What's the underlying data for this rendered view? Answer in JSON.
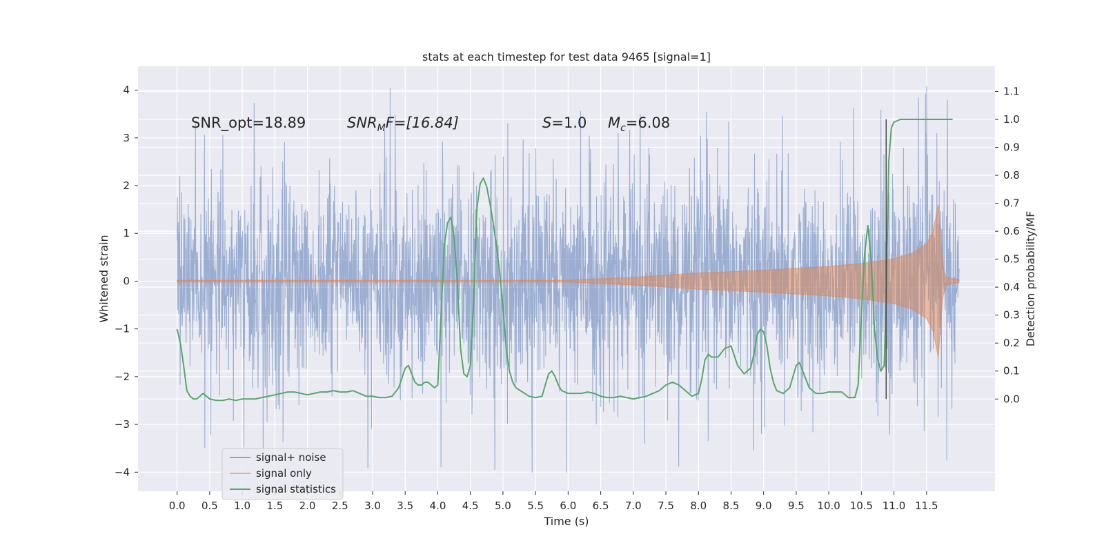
{
  "chart_data": {
    "type": "line",
    "title": "stats at each timestep for test data 9465 [signal=1]",
    "xlabel": "Time (s)",
    "ylabel": "Whitened strain",
    "ylabel_right": "Detection probability/MF",
    "xlim": [
      -0.6,
      12.55
    ],
    "ylim": [
      -4.4,
      4.5
    ],
    "ylim_right": [
      -0.33,
      1.19
    ],
    "xticks": [
      "0.0",
      "0.5",
      "1.0",
      "1.5",
      "2.0",
      "2.5",
      "3.0",
      "3.5",
      "4.0",
      "4.5",
      "5.0",
      "5.5",
      "6.0",
      "6.5",
      "7.0",
      "7.5",
      "8.0",
      "8.5",
      "9.0",
      "9.5",
      "10.0",
      "10.5",
      "11.0",
      "11.5"
    ],
    "yticks_left": [
      "4",
      "3",
      "2",
      "1",
      "0",
      "−1",
      "−2",
      "−3",
      "−4"
    ],
    "yticks_right": [
      "1.1",
      "1.0",
      "0.9",
      "0.8",
      "0.7",
      "0.6",
      "0.5",
      "0.4",
      "0.3",
      "0.2",
      "0.1",
      "0.0"
    ],
    "grid": true,
    "legend_position": "lower-left",
    "annotations": {
      "snr_opt": "SNR_opt=18.89",
      "snr_mf_main": "SNR",
      "snr_mf_sub": "M",
      "snr_mf_rest": "F=[16.84]",
      "s_main": "S",
      "s_rest": "=1.0",
      "mc_main": "M",
      "mc_sub": "c",
      "mc_rest": "=6.08"
    },
    "vertical_marker": {
      "x": 10.88,
      "y_right_range": [
        0.0,
        1.0
      ]
    },
    "series": [
      {
        "name": "signal+ noise",
        "axis": "left",
        "color": "#4c72b0",
        "x_range": [
          0.0,
          12.0
        ],
        "envelope_typical": 1.3,
        "envelope_peak": 4.1
      },
      {
        "name": "signal only",
        "axis": "left",
        "color": "#dd8452",
        "x": [
          0.0,
          6.0,
          7.0,
          8.0,
          9.0,
          10.0,
          10.5,
          11.0,
          11.3,
          11.5,
          11.6,
          11.68,
          11.75,
          11.8,
          12.0
        ],
        "amplitude": [
          0.02,
          0.02,
          0.08,
          0.17,
          0.23,
          0.31,
          0.37,
          0.47,
          0.6,
          0.78,
          1.05,
          1.6,
          0.3,
          0.08,
          0.03
        ]
      },
      {
        "name": "signal statistics",
        "axis": "right",
        "color": "#55a868",
        "x": [
          0.0,
          0.05,
          0.1,
          0.15,
          0.2,
          0.25,
          0.3,
          0.35,
          0.4,
          0.5,
          0.6,
          0.7,
          0.8,
          0.9,
          1.0,
          1.1,
          1.2,
          1.3,
          1.4,
          1.5,
          1.6,
          1.7,
          1.8,
          1.9,
          2.0,
          2.1,
          2.2,
          2.3,
          2.4,
          2.5,
          2.6,
          2.7,
          2.8,
          2.9,
          3.0,
          3.1,
          3.2,
          3.3,
          3.4,
          3.5,
          3.55,
          3.6,
          3.65,
          3.7,
          3.75,
          3.8,
          3.85,
          3.9,
          3.95,
          4.0,
          4.05,
          4.1,
          4.15,
          4.2,
          4.25,
          4.3,
          4.35,
          4.4,
          4.45,
          4.5,
          4.55,
          4.6,
          4.65,
          4.7,
          4.75,
          4.8,
          4.85,
          4.9,
          4.95,
          5.0,
          5.05,
          5.1,
          5.15,
          5.2,
          5.3,
          5.4,
          5.5,
          5.6,
          5.65,
          5.7,
          5.75,
          5.8,
          5.85,
          5.9,
          6.0,
          6.1,
          6.2,
          6.3,
          6.4,
          6.5,
          6.6,
          6.7,
          6.8,
          6.9,
          7.0,
          7.1,
          7.2,
          7.3,
          7.4,
          7.5,
          7.6,
          7.7,
          7.8,
          7.9,
          8.0,
          8.05,
          8.1,
          8.15,
          8.2,
          8.3,
          8.4,
          8.5,
          8.6,
          8.7,
          8.8,
          8.85,
          8.9,
          8.95,
          9.0,
          9.05,
          9.1,
          9.15,
          9.2,
          9.3,
          9.4,
          9.5,
          9.55,
          9.6,
          9.65,
          9.7,
          9.8,
          9.9,
          10.0,
          10.1,
          10.2,
          10.3,
          10.4,
          10.45,
          10.5,
          10.55,
          10.6,
          10.65,
          10.7,
          10.75,
          10.8,
          10.85,
          10.88,
          10.92,
          10.96,
          11.0,
          11.1,
          11.2,
          11.5,
          11.9
        ],
        "y": [
          0.25,
          0.2,
          0.12,
          0.03,
          0.01,
          0.0,
          0.0,
          0.01,
          0.02,
          0.0,
          -0.005,
          -0.005,
          0.0,
          -0.005,
          0.0,
          0.0,
          0.0,
          0.005,
          0.01,
          0.015,
          0.02,
          0.025,
          0.025,
          0.02,
          0.015,
          0.02,
          0.025,
          0.025,
          0.03,
          0.025,
          0.025,
          0.03,
          0.02,
          0.01,
          0.01,
          0.005,
          0.005,
          0.01,
          0.04,
          0.11,
          0.12,
          0.09,
          0.06,
          0.05,
          0.05,
          0.06,
          0.06,
          0.05,
          0.04,
          0.05,
          0.3,
          0.55,
          0.63,
          0.65,
          0.58,
          0.42,
          0.18,
          0.09,
          0.08,
          0.12,
          0.35,
          0.68,
          0.77,
          0.79,
          0.76,
          0.7,
          0.63,
          0.55,
          0.45,
          0.33,
          0.18,
          0.1,
          0.06,
          0.04,
          0.025,
          0.01,
          0.005,
          0.01,
          0.05,
          0.09,
          0.1,
          0.08,
          0.05,
          0.03,
          0.02,
          0.02,
          0.02,
          0.025,
          0.02,
          0.01,
          0.005,
          0.005,
          0.01,
          0.005,
          0.0,
          0.005,
          0.01,
          0.02,
          0.03,
          0.05,
          0.06,
          0.05,
          0.03,
          0.01,
          0.02,
          0.07,
          0.14,
          0.16,
          0.15,
          0.15,
          0.18,
          0.19,
          0.12,
          0.09,
          0.11,
          0.16,
          0.23,
          0.25,
          0.24,
          0.19,
          0.11,
          0.06,
          0.03,
          0.02,
          0.04,
          0.12,
          0.13,
          0.1,
          0.07,
          0.04,
          0.02,
          0.02,
          0.025,
          0.025,
          0.025,
          0.005,
          0.005,
          0.05,
          0.3,
          0.52,
          0.62,
          0.5,
          0.25,
          0.14,
          0.1,
          0.12,
          0.35,
          0.85,
          0.97,
          0.99,
          1.0,
          1.0,
          1.0,
          1.0
        ]
      }
    ]
  }
}
